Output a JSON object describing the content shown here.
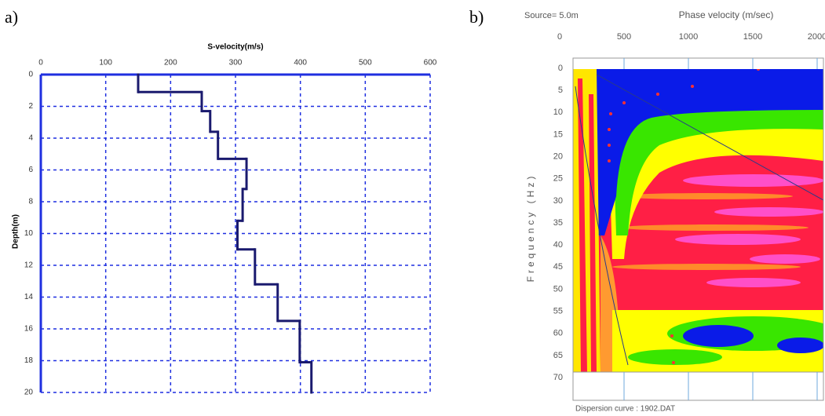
{
  "chart_data": [
    {
      "type": "step",
      "label": "a)",
      "title": "S-velocity(m/s)",
      "y_label": "Depth(m)",
      "x": [
        150,
        248,
        261,
        273,
        317,
        311,
        303,
        330,
        365,
        399,
        417
      ],
      "values": [
        1.1,
        2.3,
        3.6,
        5.3,
        7.2,
        9.2,
        11.0,
        13.2,
        15.5,
        18.1,
        20
      ],
      "color": "#1a1a6e",
      "xlim": [
        0,
        600
      ],
      "xticks": [
        0,
        100,
        200,
        300,
        400,
        500,
        600
      ],
      "ylim": [
        0,
        20
      ],
      "yticks": [
        0,
        2,
        4,
        6,
        8,
        10,
        12,
        14,
        16,
        18,
        20
      ],
      "grid": true,
      "axis_color": "#1f2fe0"
    },
    {
      "type": "heatmap",
      "label": "b)",
      "x_label": "Phase velocity (m/sec)",
      "y_label": "Frequency (Hz)",
      "annotations": [
        "Source=  5.0m",
        "Dispersion curve : 1902.DAT"
      ],
      "xlim": [
        0,
        2000
      ],
      "xticks": [
        0,
        500,
        1000,
        1500,
        2000
      ],
      "ylim": [
        0,
        70
      ],
      "yticks": [
        0,
        5,
        10,
        15,
        20,
        25,
        30,
        35,
        40,
        45,
        50,
        55,
        60,
        65,
        70
      ]
    }
  ]
}
